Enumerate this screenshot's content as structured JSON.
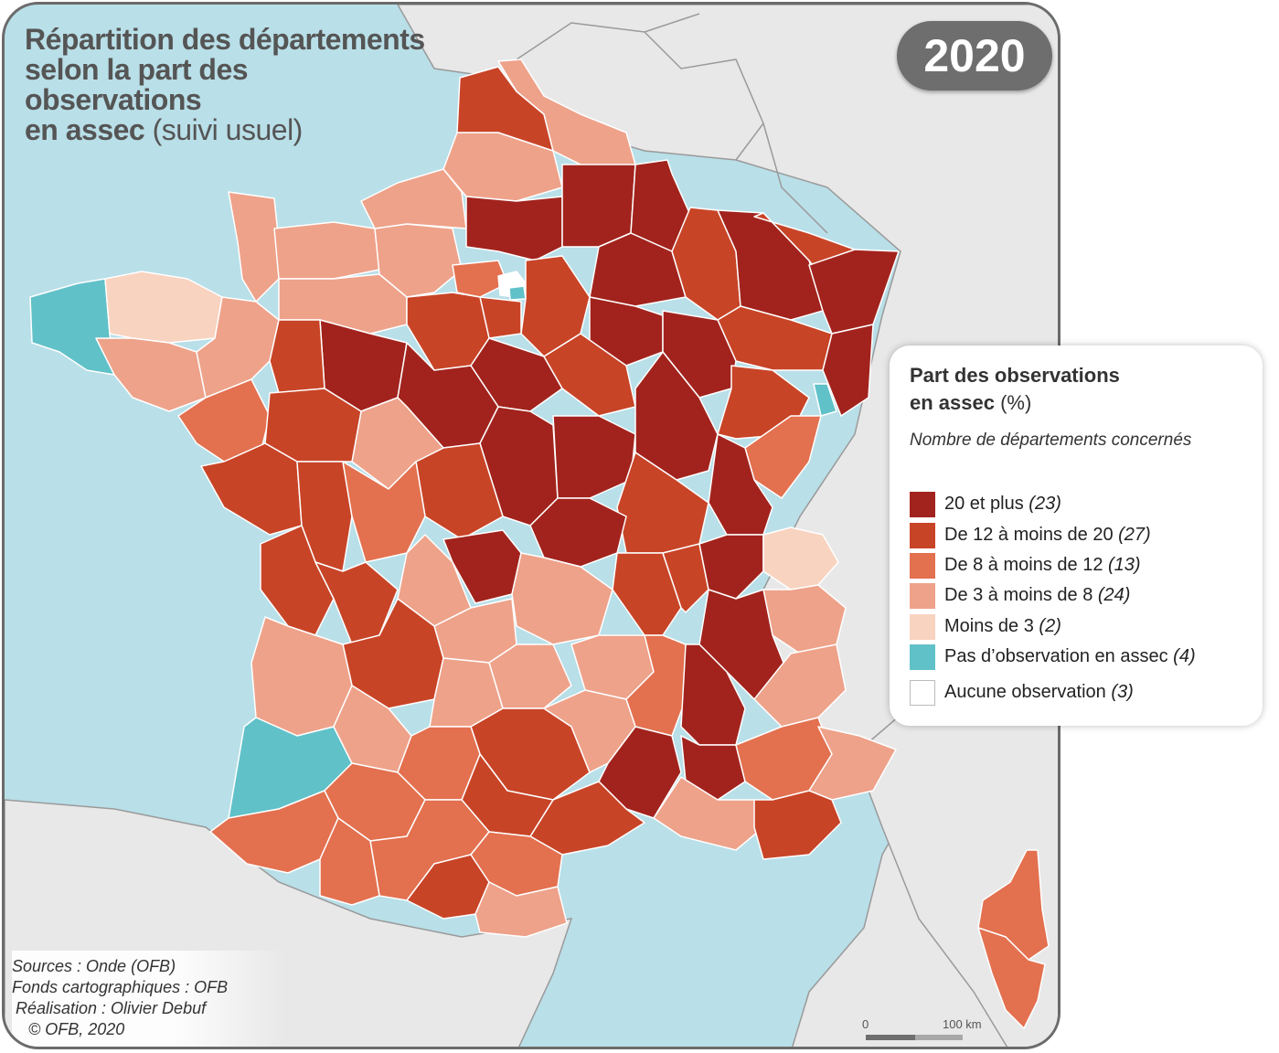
{
  "title": {
    "line1": "Répartition des départements",
    "line2": "selon la part des",
    "line3": "observations",
    "line4_bold": "en assec",
    "line4_light": "(suivi usuel)"
  },
  "year": "2020",
  "legend": {
    "title_bold": "Part des observations",
    "title_bold2": "en assec",
    "title_unit": "(%)",
    "subtitle": "Nombre de départements concernés",
    "classes": [
      {
        "label": "20 et plus",
        "count": "(23)",
        "color": "#a2231d"
      },
      {
        "label": "De 12 à moins de 20",
        "count": "(27)",
        "color": "#c84427"
      },
      {
        "label": "De 8 à moins de 12",
        "count": "(13)",
        "color": "#e3704f"
      },
      {
        "label": "De 3 à moins de 8",
        "count": "(24)",
        "color": "#eea28a"
      },
      {
        "label": "Moins de 3",
        "count": "(2)",
        "color": "#f8d3c0"
      },
      {
        "label": "Pas d’observation en assec",
        "count": "(4)",
        "color": "#61c1c8"
      },
      {
        "label": "Aucune observation",
        "count": "(3)",
        "color": "#ffffff"
      }
    ]
  },
  "credits": {
    "sources": "Sources : Onde (OFB)",
    "fonds": "Fonds cartographiques : OFB",
    "realisation": "Réalisation : Olivier Debuf",
    "copyright": "© OFB, 2020"
  },
  "scale": {
    "start": "0",
    "end": "100 km"
  },
  "colors": {
    "sea": "#b9dfe8",
    "land": "#e8e8e8",
    "border": "#ffffff"
  }
}
